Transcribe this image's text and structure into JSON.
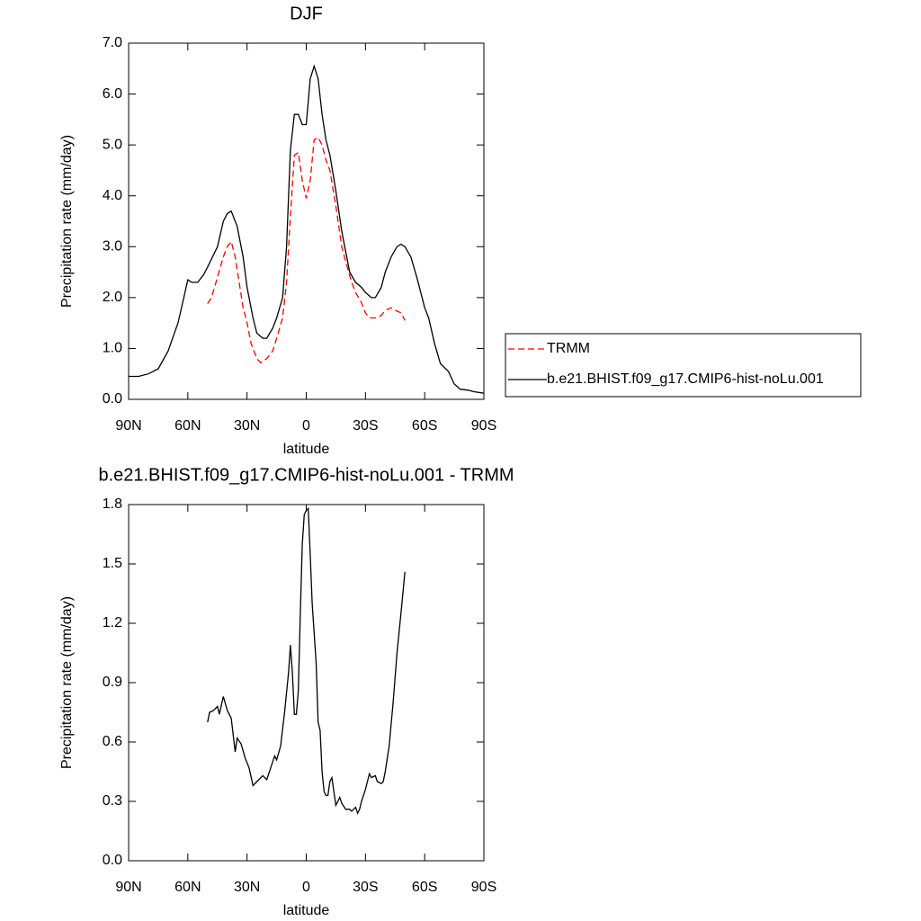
{
  "chart_data": [
    {
      "type": "line",
      "title": "DJF",
      "xlabel": "latitude",
      "ylabel": "Precipitation rate (mm/day)",
      "xlim": [
        90,
        -90
      ],
      "xticks": [
        {
          "value": 90,
          "label": "90N"
        },
        {
          "value": 60,
          "label": "60N"
        },
        {
          "value": 30,
          "label": "30N"
        },
        0,
        {
          "value": -30,
          "label": "30S"
        },
        {
          "value": -60,
          "label": "60S"
        },
        {
          "value": -90,
          "label": "90S"
        }
      ],
      "ylim": [
        0,
        7
      ],
      "yticks": [
        {
          "value": 0,
          "label": "0.0"
        },
        {
          "value": 1,
          "label": "1.0"
        },
        {
          "value": 2,
          "label": "2.0"
        },
        {
          "value": 3,
          "label": "3.0"
        },
        {
          "value": 4,
          "label": "4.0"
        },
        {
          "value": 5,
          "label": "5.0"
        },
        {
          "value": 6,
          "label": "6.0"
        },
        {
          "value": 7,
          "label": "7.0"
        }
      ],
      "legend": "right",
      "series": [
        {
          "name": "TRMM",
          "color": "#ff0000",
          "linestyle": "dashed",
          "x": [
            50,
            48,
            45,
            42,
            40,
            38,
            36,
            34,
            32,
            30,
            28,
            25,
            23,
            20,
            17,
            15,
            12,
            10,
            8,
            6,
            4,
            2,
            0,
            -2,
            -4,
            -6,
            -8,
            -10,
            -12,
            -15,
            -18,
            -20,
            -23,
            -25,
            -28,
            -30,
            -32,
            -35,
            -38,
            -40,
            -43,
            -45,
            -48,
            -50
          ],
          "values": [
            1.88,
            2.0,
            2.4,
            2.8,
            3.0,
            3.1,
            2.8,
            2.3,
            1.8,
            1.5,
            1.1,
            0.8,
            0.72,
            0.8,
            0.95,
            1.2,
            1.6,
            2.3,
            3.6,
            4.8,
            4.85,
            4.3,
            3.95,
            4.3,
            5.1,
            5.15,
            5.0,
            4.7,
            4.5,
            3.8,
            3.0,
            2.7,
            2.3,
            2.1,
            1.9,
            1.7,
            1.6,
            1.6,
            1.65,
            1.75,
            1.8,
            1.75,
            1.7,
            1.55
          ]
        },
        {
          "name": "b.e21.BHIST.f09_g17.CMIP6-hist-noLu.001",
          "color": "#000000",
          "linestyle": "solid",
          "x": [
            90,
            85,
            80,
            75,
            70,
            65,
            62,
            60,
            58,
            55,
            52,
            50,
            45,
            42,
            40,
            38,
            35,
            32,
            30,
            27,
            25,
            22,
            20,
            17,
            15,
            12,
            10,
            8,
            6,
            4,
            2,
            0,
            -2,
            -4,
            -6,
            -8,
            -10,
            -12,
            -15,
            -18,
            -20,
            -22,
            -25,
            -28,
            -30,
            -33,
            -35,
            -38,
            -40,
            -43,
            -46,
            -48,
            -50,
            -53,
            -56,
            -60,
            -62,
            -65,
            -68,
            -72,
            -75,
            -78,
            -82,
            -85,
            -90
          ],
          "values": [
            0.45,
            0.45,
            0.5,
            0.6,
            0.95,
            1.5,
            2.0,
            2.35,
            2.3,
            2.3,
            2.45,
            2.6,
            3.0,
            3.5,
            3.65,
            3.7,
            3.4,
            2.8,
            2.2,
            1.6,
            1.3,
            1.2,
            1.2,
            1.4,
            1.6,
            2.0,
            3.0,
            4.9,
            5.6,
            5.6,
            5.4,
            5.4,
            6.3,
            6.55,
            6.3,
            5.6,
            5.1,
            4.8,
            4.1,
            3.3,
            2.9,
            2.5,
            2.3,
            2.2,
            2.1,
            2.0,
            2.0,
            2.2,
            2.5,
            2.8,
            3.0,
            3.05,
            3.0,
            2.8,
            2.4,
            1.8,
            1.6,
            1.1,
            0.7,
            0.55,
            0.3,
            0.2,
            0.18,
            0.15,
            0.12
          ]
        }
      ]
    },
    {
      "type": "line",
      "title": "b.e21.BHIST.f09_g17.CMIP6-hist-noLu.001 - TRMM",
      "xlabel": "latitude",
      "ylabel": "Precipitation rate (mm/day)",
      "xlim": [
        90,
        -90
      ],
      "xticks": [
        {
          "value": 90,
          "label": "90N"
        },
        {
          "value": 60,
          "label": "60N"
        },
        {
          "value": 30,
          "label": "30N"
        },
        0,
        {
          "value": -30,
          "label": "30S"
        },
        {
          "value": -60,
          "label": "60S"
        },
        {
          "value": -90,
          "label": "90S"
        }
      ],
      "ylim": [
        0,
        1.8
      ],
      "yticks": [
        {
          "value": 0,
          "label": "0.0"
        },
        0.3,
        0.6,
        0.9,
        1.2,
        1.5,
        1.8
      ],
      "color": "#000000",
      "x": [
        50,
        49,
        47,
        45,
        44,
        42,
        40,
        38,
        36,
        35,
        33,
        31,
        29,
        27,
        25,
        22,
        20,
        18,
        16,
        15,
        13,
        11,
        9,
        8,
        7,
        6,
        5,
        4,
        3,
        2,
        1,
        0,
        -1,
        -2,
        -3,
        -5,
        -6,
        -7,
        -8,
        -9,
        -10,
        -11,
        -12,
        -13,
        -14,
        -15,
        -17,
        -18,
        -20,
        -22,
        -23,
        -25,
        -26,
        -27,
        -28,
        -30,
        -31,
        -32,
        -33,
        -35,
        -36,
        -38,
        -39,
        -40,
        -42,
        -44,
        -46,
        -48,
        -50
      ],
      "values": [
        0.7,
        0.75,
        0.76,
        0.78,
        0.74,
        0.83,
        0.76,
        0.72,
        0.55,
        0.62,
        0.59,
        0.52,
        0.47,
        0.38,
        0.4,
        0.43,
        0.41,
        0.47,
        0.53,
        0.51,
        0.58,
        0.75,
        0.95,
        1.09,
        0.95,
        0.74,
        0.74,
        0.86,
        1.25,
        1.6,
        1.75,
        1.77,
        1.78,
        1.55,
        1.3,
        1.0,
        0.7,
        0.66,
        0.45,
        0.35,
        0.33,
        0.33,
        0.4,
        0.42,
        0.35,
        0.28,
        0.32,
        0.29,
        0.26,
        0.26,
        0.25,
        0.27,
        0.24,
        0.26,
        0.3,
        0.36,
        0.4,
        0.44,
        0.42,
        0.43,
        0.4,
        0.39,
        0.4,
        0.45,
        0.58,
        0.8,
        1.05,
        1.25,
        1.46
      ]
    }
  ]
}
